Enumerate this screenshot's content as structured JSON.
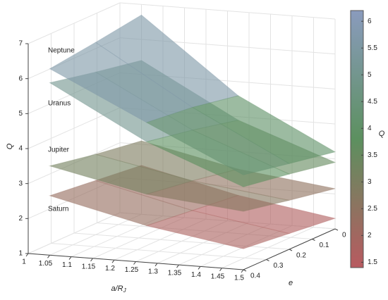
{
  "chart_data": {
    "type": "surface3d",
    "xlabel": "a/R",
    "xlabel_subscript": "J",
    "ylabel": "e",
    "zlabel": "Q",
    "colorbar_label": "Q",
    "x": [
      1.05,
      1.275,
      1.5
    ],
    "y": [
      0,
      0.2,
      0.4
    ],
    "series": [
      {
        "name": "Saturn",
        "z": [
          [
            2.4,
            1.75,
            1.3
          ],
          [
            2.55,
            1.9,
            1.45
          ],
          [
            2.7,
            2.05,
            1.6
          ]
        ]
      },
      {
        "name": "Jupiter",
        "z": [
          [
            3.1,
            2.5,
            2.15
          ],
          [
            3.3,
            2.75,
            2.4
          ],
          [
            3.55,
            2.95,
            2.67
          ]
        ]
      },
      {
        "name": "Uranus",
        "z": [
          [
            5.4,
            3.9,
            2.9
          ],
          [
            5.65,
            4.2,
            3.15
          ],
          [
            5.93,
            4.45,
            3.37
          ]
        ]
      },
      {
        "name": "Neptune",
        "z": [
          [
            6.7,
            4.6,
            3.2
          ],
          [
            6.5,
            4.85,
            3.45
          ],
          [
            6.33,
            5.0,
            3.71
          ]
        ]
      }
    ],
    "xlim": [
      1,
      1.5
    ],
    "xticks": [
      1,
      1.05,
      1.1,
      1.15,
      1.2,
      1.25,
      1.3,
      1.35,
      1.4,
      1.45,
      1.5
    ],
    "ylim": [
      0,
      0.4
    ],
    "yticks": [
      0,
      0.1,
      0.2,
      0.3,
      0.4
    ],
    "zlim": [
      1,
      7
    ],
    "zticks": [
      1,
      2,
      3,
      4,
      5,
      6,
      7
    ],
    "clim": [
      1.4,
      6.2
    ],
    "cticks": [
      1.5,
      2,
      2.5,
      3,
      3.5,
      4,
      4.5,
      5,
      5.5,
      6
    ],
    "colormap": [
      "#b85a60",
      "#5c905f",
      "#8a9bbd"
    ],
    "grid": true
  }
}
